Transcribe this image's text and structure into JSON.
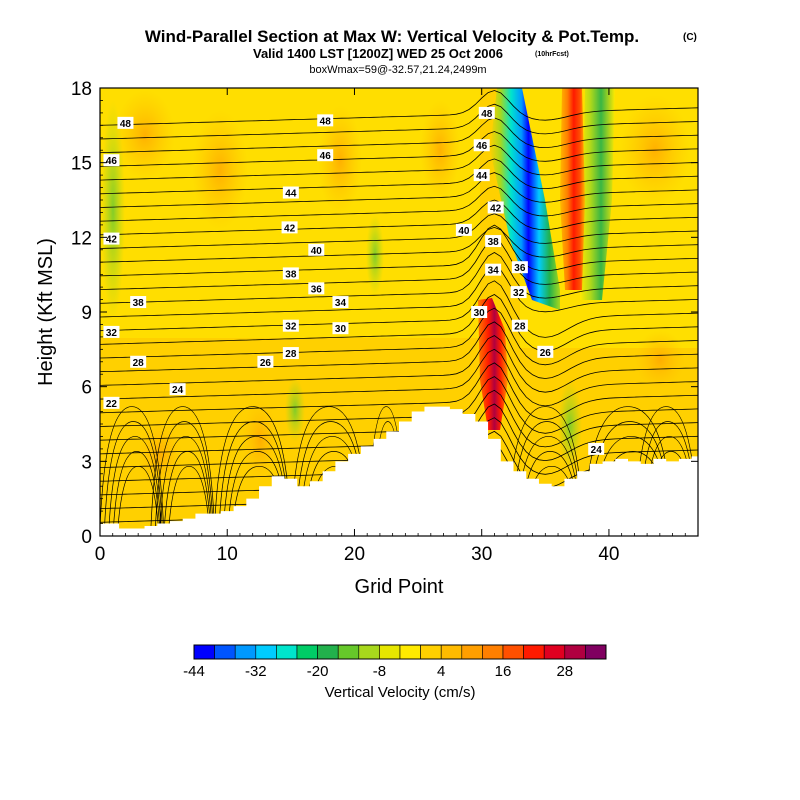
{
  "chart_data": {
    "type": "heatmap",
    "title": "Wind-Parallel Section at Max W: Vertical Velocity & Pot.Temp.",
    "title_tag": "(C)",
    "subtitle": "Valid 1400 LST [1200Z] WED 25 Oct 2006",
    "subtitle_tag": "(10hrFcst)",
    "subtitle2": "boxWmax=59@-32.57,21.24,2499m",
    "xlabel": "Grid Point",
    "ylabel": "Height (Kft MSL)",
    "xlim": [
      0,
      47
    ],
    "ylim": [
      0,
      18
    ],
    "x_ticks": [
      0,
      10,
      20,
      30,
      40
    ],
    "y_ticks": [
      0,
      3,
      6,
      9,
      12,
      15,
      18
    ],
    "colorbar": {
      "label": "Vertical Velocity (cm/s)",
      "tick_labels": [
        "-44",
        "-32",
        "-20",
        "-8",
        "4",
        "16",
        "28"
      ],
      "colors": [
        "#0000ff",
        "#0055ff",
        "#0099ff",
        "#00ccff",
        "#00e5cc",
        "#00cc66",
        "#22b14c",
        "#66c82a",
        "#a8d81c",
        "#e6e600",
        "#ffea00",
        "#ffd000",
        "#ffbb00",
        "#ff9f00",
        "#ff7f00",
        "#ff5000",
        "#ff1a00",
        "#e00020",
        "#b00040",
        "#800060"
      ]
    },
    "terrain_kft": [
      0.5,
      0.5,
      0.3,
      0.3,
      0.4,
      0.5,
      0.6,
      0.7,
      0.9,
      0.9,
      1.0,
      1.2,
      1.5,
      2.0,
      2.4,
      2.3,
      2.0,
      2.2,
      2.6,
      3.0,
      3.3,
      3.6,
      3.9,
      4.2,
      4.6,
      5.0,
      5.2,
      5.2,
      5.1,
      4.9,
      4.6,
      3.9,
      3.0,
      2.6,
      2.3,
      2.1,
      2.0,
      2.3,
      2.6,
      2.9,
      3.0,
      3.1,
      3.0,
      2.9,
      3.1,
      3.0,
      3.1,
      3.2
    ],
    "contour_labels": [
      {
        "text": "48",
        "x": 2.0,
        "y": 16.6
      },
      {
        "text": "48",
        "x": 17.7,
        "y": 16.7
      },
      {
        "text": "46",
        "x": 0.9,
        "y": 15.1
      },
      {
        "text": "46",
        "x": 17.7,
        "y": 15.3
      },
      {
        "text": "44",
        "x": 15.0,
        "y": 13.8
      },
      {
        "text": "42",
        "x": 14.9,
        "y": 12.4
      },
      {
        "text": "42",
        "x": 0.9,
        "y": 11.95
      },
      {
        "text": "40",
        "x": 17.0,
        "y": 11.5
      },
      {
        "text": "38",
        "x": 15.0,
        "y": 10.55
      },
      {
        "text": "36",
        "x": 17.0,
        "y": 9.95
      },
      {
        "text": "34",
        "x": 18.9,
        "y": 9.4
      },
      {
        "text": "38",
        "x": 3.0,
        "y": 9.4
      },
      {
        "text": "32",
        "x": 0.9,
        "y": 8.2
      },
      {
        "text": "32",
        "x": 15.0,
        "y": 8.45
      },
      {
        "text": "30",
        "x": 18.9,
        "y": 8.35
      },
      {
        "text": "28",
        "x": 15.0,
        "y": 7.35
      },
      {
        "text": "26",
        "x": 13.0,
        "y": 7.0
      },
      {
        "text": "28",
        "x": 3.0,
        "y": 7.0
      },
      {
        "text": "24",
        "x": 6.1,
        "y": 5.9
      },
      {
        "text": "22",
        "x": 0.9,
        "y": 5.35
      },
      {
        "text": "48",
        "x": 30.4,
        "y": 17.0
      },
      {
        "text": "46",
        "x": 30.0,
        "y": 15.7
      },
      {
        "text": "44",
        "x": 30.0,
        "y": 14.5
      },
      {
        "text": "42",
        "x": 31.1,
        "y": 13.2
      },
      {
        "text": "40",
        "x": 28.6,
        "y": 12.3
      },
      {
        "text": "38",
        "x": 30.9,
        "y": 11.85
      },
      {
        "text": "34",
        "x": 30.9,
        "y": 10.7
      },
      {
        "text": "36",
        "x": 33.0,
        "y": 10.8
      },
      {
        "text": "32",
        "x": 32.9,
        "y": 9.8
      },
      {
        "text": "30",
        "x": 29.8,
        "y": 9.0
      },
      {
        "text": "28",
        "x": 33.0,
        "y": 8.45
      },
      {
        "text": "26",
        "x": 35.0,
        "y": 7.4
      },
      {
        "text": "24",
        "x": 39.0,
        "y": 3.5
      }
    ]
  }
}
